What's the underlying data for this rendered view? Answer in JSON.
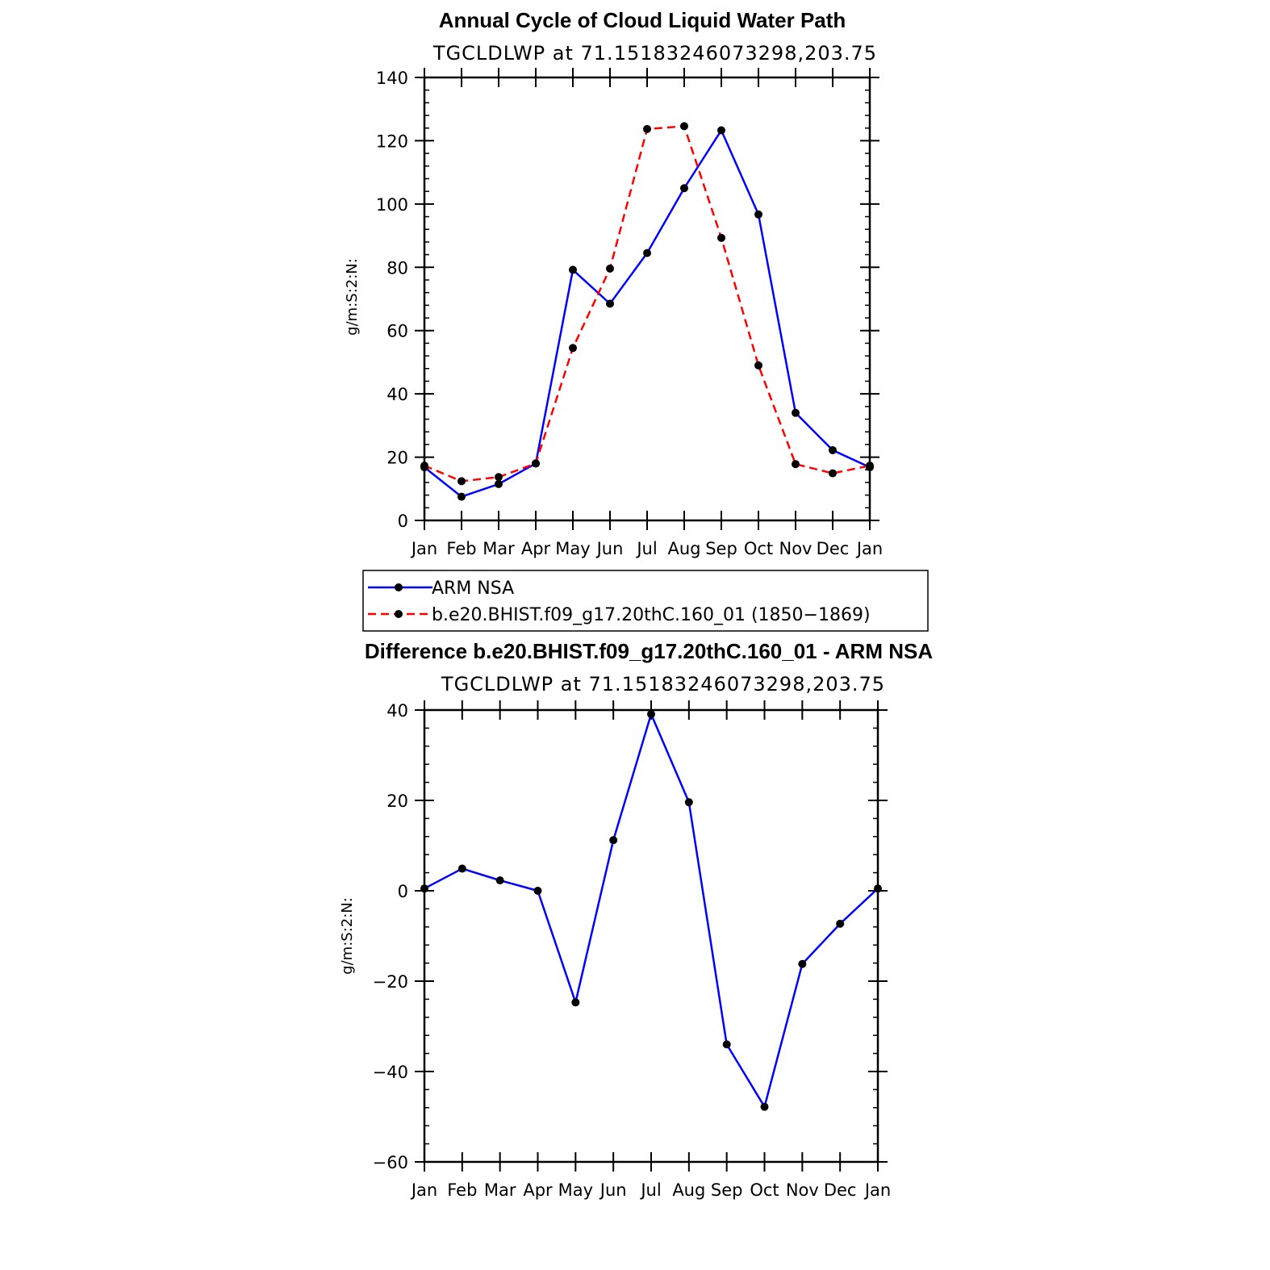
{
  "chart_data": [
    {
      "type": "line",
      "title": "Annual Cycle of Cloud Liquid Water Path",
      "subtitle": "TGCLDLWP  at  71.15183246073298,203.75",
      "xlabel": "",
      "ylabel": "g/m:S:2:N:",
      "categories": [
        "Jan",
        "Feb",
        "Mar",
        "Apr",
        "May",
        "Jun",
        "Jul",
        "Aug",
        "Sep",
        "Oct",
        "Nov",
        "Dec",
        "Jan"
      ],
      "ylim": [
        0,
        140
      ],
      "yticks": [
        0,
        20,
        40,
        60,
        80,
        100,
        120,
        140
      ],
      "ytick_labels": [
        "0",
        "20",
        "40",
        "60",
        "80",
        "100",
        "120",
        "140"
      ],
      "series": [
        {
          "name": "ARM NSA",
          "color": "#0000ff",
          "dash": "solid",
          "values": [
            16.8,
            7.5,
            11.5,
            18.0,
            79.2,
            68.5,
            84.5,
            105.0,
            123.3,
            96.7,
            34.0,
            22.2,
            16.8
          ]
        },
        {
          "name": "b.e20.BHIST.f09_g17.20thC.160_01 (1850−1869)",
          "color": "#ff0000",
          "dash": "dashed",
          "values": [
            17.3,
            12.4,
            13.7,
            18.0,
            54.5,
            79.6,
            123.7,
            124.6,
            89.3,
            49.0,
            17.8,
            14.9,
            17.3
          ]
        }
      ],
      "legend": {
        "placement": "below",
        "entries": [
          "ARM NSA",
          "b.e20.BHIST.f09_g17.20thC.160_01 (1850−1869)"
        ]
      }
    },
    {
      "type": "line",
      "title": "Difference b.e20.BHIST.f09_g17.20thC.160_01 - ARM NSA",
      "subtitle": "TGCLDLWP  at  71.15183246073298,203.75",
      "xlabel": "",
      "ylabel": "g/m:S:2:N:",
      "categories": [
        "Jan",
        "Feb",
        "Mar",
        "Apr",
        "May",
        "Jun",
        "Jul",
        "Aug",
        "Sep",
        "Oct",
        "Nov",
        "Dec",
        "Jan"
      ],
      "ylim": [
        -60,
        40
      ],
      "yticks": [
        -60,
        -40,
        -20,
        0,
        20,
        40
      ],
      "ytick_labels": [
        "−60",
        "−40",
        "−20",
        "0",
        "20",
        "40"
      ],
      "series": [
        {
          "name": "Difference",
          "color": "#0000ff",
          "dash": "solid",
          "values": [
            0.5,
            4.9,
            2.3,
            0.0,
            -24.7,
            11.2,
            39.1,
            19.6,
            -34.0,
            -47.8,
            -16.2,
            -7.3,
            0.5
          ]
        }
      ]
    }
  ]
}
